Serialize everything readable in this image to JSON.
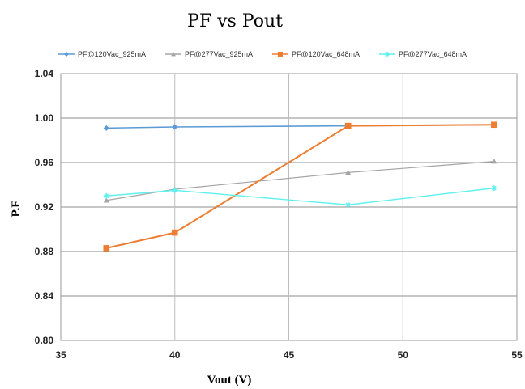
{
  "chart_data": {
    "type": "line",
    "title": "PF vs Pout",
    "xlabel": "Vout (V)",
    "ylabel": "P.F",
    "xlim": [
      35,
      55
    ],
    "ylim": [
      0.8,
      1.04
    ],
    "xticks": [
      35,
      40,
      45,
      50,
      55
    ],
    "yticks": [
      0.8,
      0.84,
      0.88,
      0.92,
      0.96,
      1.0,
      1.04
    ],
    "xtick_labels": [
      "35",
      "40",
      "45",
      "50",
      "55"
    ],
    "ytick_labels": [
      "0.80",
      "0.84",
      "0.88",
      "0.92",
      "0.96",
      "1.00",
      "1.04"
    ],
    "grid": "vertical and horizontal",
    "legend_position": "top",
    "series": [
      {
        "name": "PF@120Vac_925mA",
        "color": "#5b9bd5",
        "marker": "diamond",
        "x": [
          37,
          40,
          47.6,
          54
        ],
        "y": [
          0.991,
          0.992,
          0.993,
          0.994
        ]
      },
      {
        "name": "PF@277Vac_925mA",
        "color": "#a5a5a5",
        "marker": "triangle",
        "x": [
          37,
          40,
          47.6,
          54
        ],
        "y": [
          0.926,
          0.936,
          0.951,
          0.961
        ]
      },
      {
        "name": "PF@120Vac_648mA",
        "color": "#ed7d31",
        "marker": "square",
        "x": [
          37,
          40,
          47.6,
          54
        ],
        "y": [
          0.883,
          0.897,
          0.993,
          0.994
        ]
      },
      {
        "name": "PF@277Vac_648mA",
        "color": "#5ff0f0",
        "marker": "star",
        "x": [
          37,
          40,
          47.6,
          54
        ],
        "y": [
          0.93,
          0.935,
          0.922,
          0.937
        ]
      }
    ]
  }
}
